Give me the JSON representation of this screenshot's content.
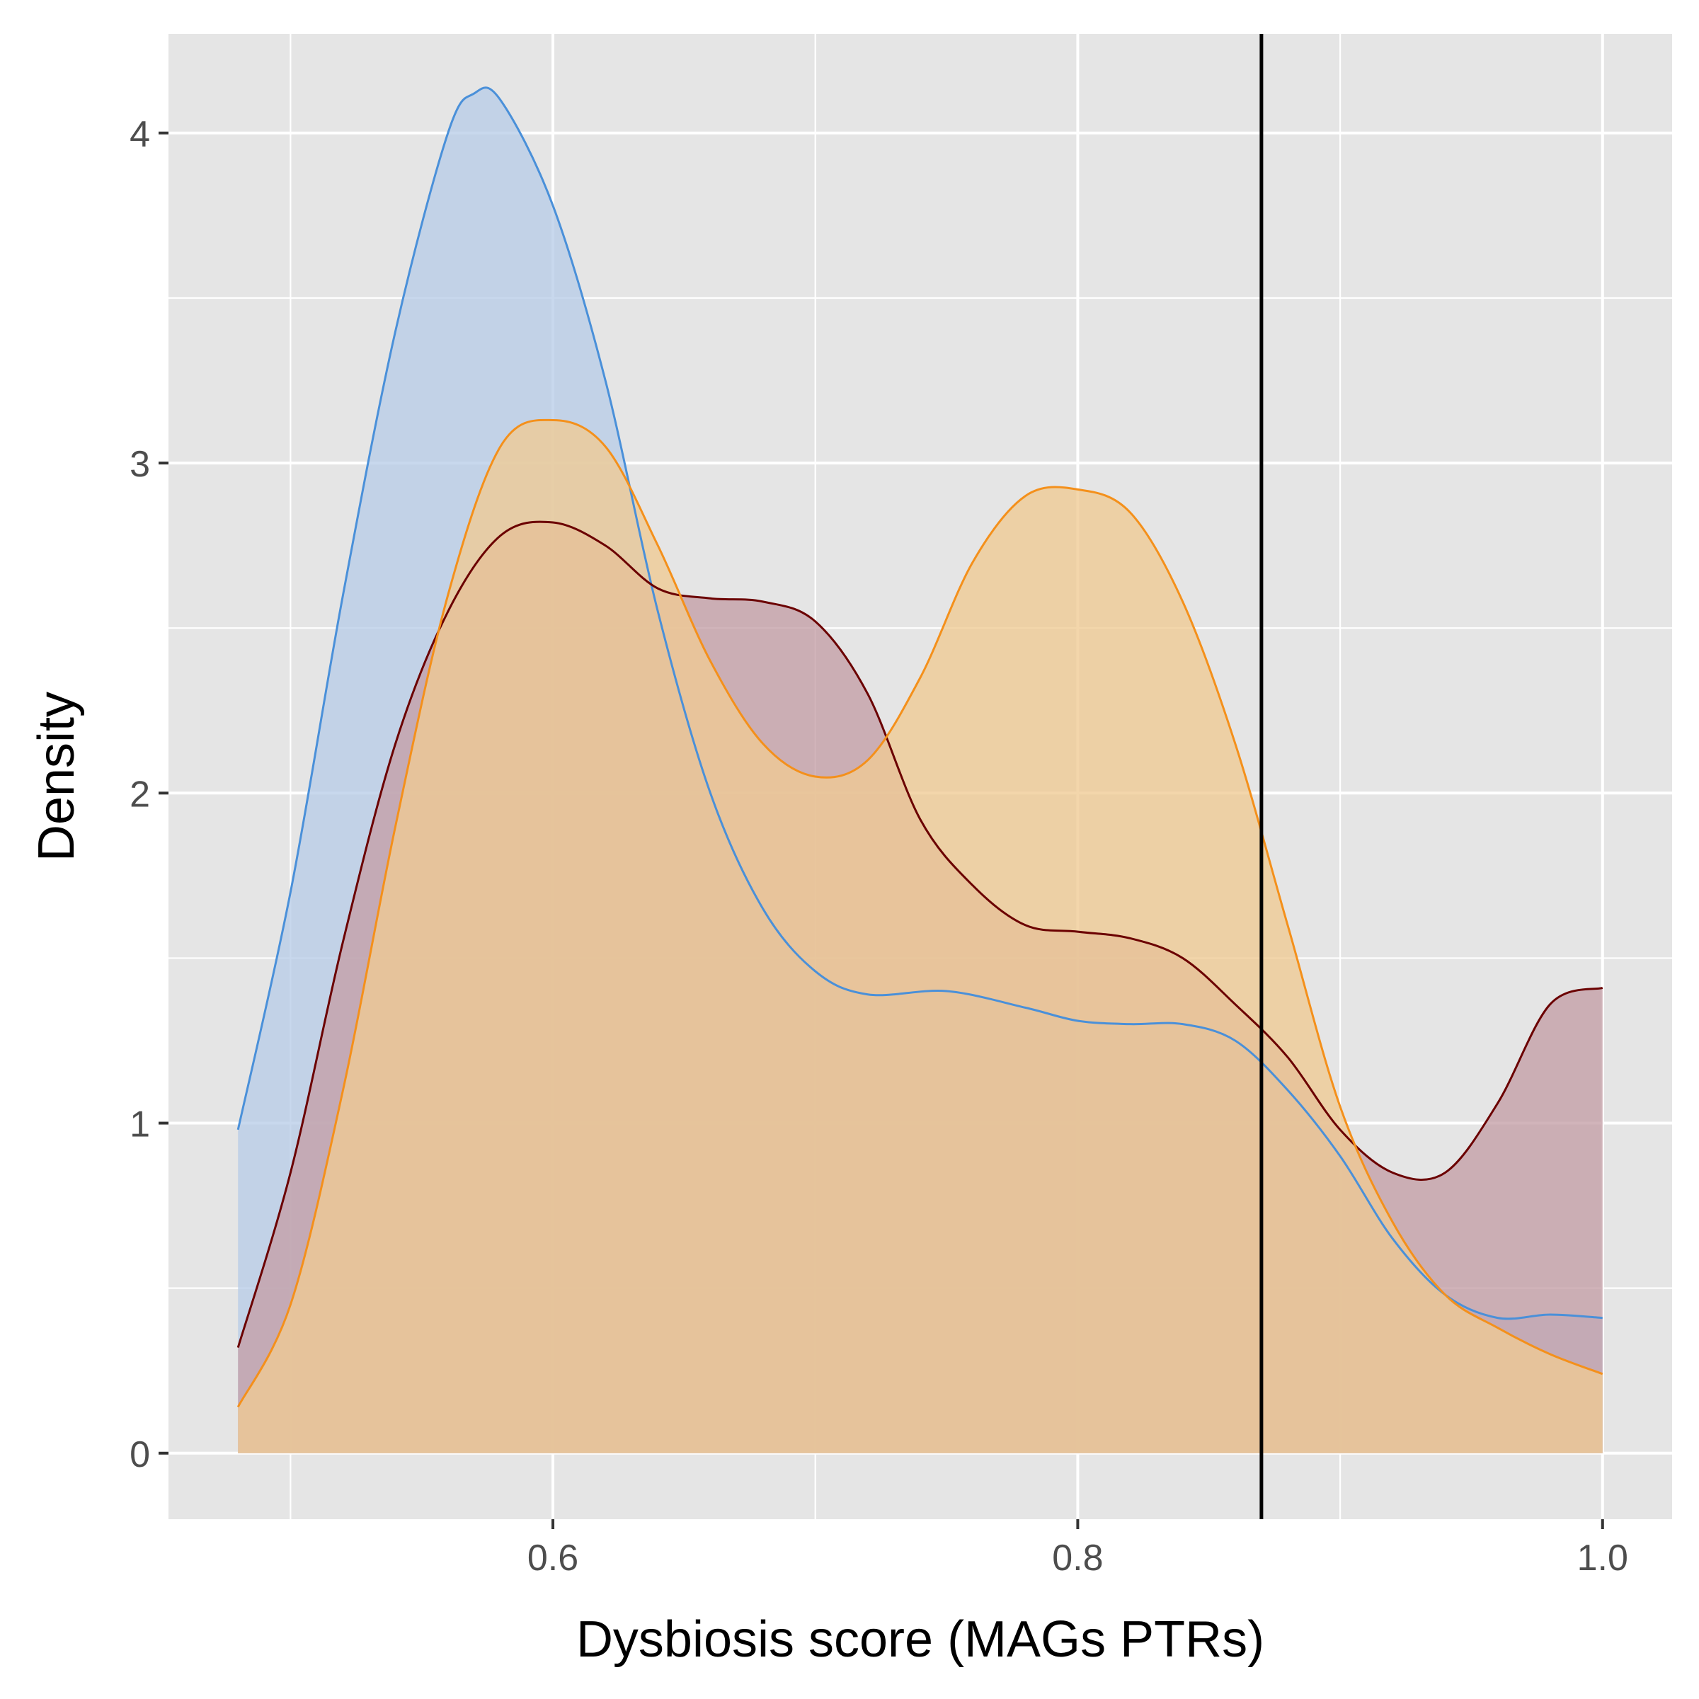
{
  "chart_data": {
    "type": "area",
    "title": "",
    "xlabel": "Dysbiosis score (MAGs PTRs)",
    "ylabel": "Density",
    "xlim": [
      0.4535,
      1.0265
    ],
    "ylim": [
      -0.2,
      4.3
    ],
    "x_ticks": [
      0.6,
      0.8,
      1.0
    ],
    "x_tick_labels": [
      "0.6",
      "0.8",
      "1.0"
    ],
    "y_ticks": [
      0,
      1,
      2,
      3,
      4
    ],
    "y_tick_labels": [
      "0",
      "1",
      "2",
      "3",
      "4"
    ],
    "grid": true,
    "legend": "none",
    "vline": {
      "x": 0.87,
      "color": "#000000"
    },
    "series": [
      {
        "color": "#4a90d9",
        "fill": "#b8cde8",
        "points": [
          [
            0.48,
            0.98
          ],
          [
            0.5,
            1.7
          ],
          [
            0.52,
            2.6
          ],
          [
            0.54,
            3.4
          ],
          [
            0.56,
            4.0
          ],
          [
            0.57,
            4.12
          ],
          [
            0.58,
            4.1
          ],
          [
            0.6,
            3.78
          ],
          [
            0.62,
            3.25
          ],
          [
            0.64,
            2.55
          ],
          [
            0.66,
            2.0
          ],
          [
            0.68,
            1.65
          ],
          [
            0.7,
            1.46
          ],
          [
            0.72,
            1.39
          ],
          [
            0.75,
            1.4
          ],
          [
            0.78,
            1.35
          ],
          [
            0.8,
            1.31
          ],
          [
            0.82,
            1.3
          ],
          [
            0.84,
            1.3
          ],
          [
            0.86,
            1.25
          ],
          [
            0.88,
            1.1
          ],
          [
            0.9,
            0.9
          ],
          [
            0.92,
            0.65
          ],
          [
            0.94,
            0.48
          ],
          [
            0.96,
            0.41
          ],
          [
            0.98,
            0.42
          ],
          [
            1.0,
            0.41
          ]
        ]
      },
      {
        "color": "#6b0000",
        "fill": "#c49fa6",
        "points": [
          [
            0.48,
            0.32
          ],
          [
            0.5,
            0.85
          ],
          [
            0.52,
            1.55
          ],
          [
            0.54,
            2.15
          ],
          [
            0.56,
            2.55
          ],
          [
            0.58,
            2.78
          ],
          [
            0.6,
            2.82
          ],
          [
            0.62,
            2.75
          ],
          [
            0.64,
            2.62
          ],
          [
            0.66,
            2.59
          ],
          [
            0.68,
            2.58
          ],
          [
            0.7,
            2.52
          ],
          [
            0.72,
            2.3
          ],
          [
            0.74,
            1.92
          ],
          [
            0.76,
            1.72
          ],
          [
            0.78,
            1.6
          ],
          [
            0.8,
            1.58
          ],
          [
            0.82,
            1.56
          ],
          [
            0.84,
            1.5
          ],
          [
            0.86,
            1.36
          ],
          [
            0.88,
            1.2
          ],
          [
            0.9,
            0.98
          ],
          [
            0.92,
            0.85
          ],
          [
            0.94,
            0.85
          ],
          [
            0.96,
            1.06
          ],
          [
            0.98,
            1.36
          ],
          [
            1.0,
            1.41
          ]
        ]
      },
      {
        "color": "#f4901b",
        "fill": "#f0cb94",
        "points": [
          [
            0.48,
            0.14
          ],
          [
            0.5,
            0.45
          ],
          [
            0.52,
            1.1
          ],
          [
            0.54,
            1.9
          ],
          [
            0.56,
            2.6
          ],
          [
            0.58,
            3.05
          ],
          [
            0.6,
            3.13
          ],
          [
            0.62,
            3.05
          ],
          [
            0.64,
            2.75
          ],
          [
            0.66,
            2.4
          ],
          [
            0.68,
            2.15
          ],
          [
            0.7,
            2.05
          ],
          [
            0.72,
            2.1
          ],
          [
            0.74,
            2.35
          ],
          [
            0.76,
            2.7
          ],
          [
            0.78,
            2.9
          ],
          [
            0.8,
            2.92
          ],
          [
            0.82,
            2.85
          ],
          [
            0.84,
            2.58
          ],
          [
            0.86,
            2.15
          ],
          [
            0.88,
            1.6
          ],
          [
            0.9,
            1.05
          ],
          [
            0.92,
            0.7
          ],
          [
            0.94,
            0.48
          ],
          [
            0.96,
            0.38
          ],
          [
            0.98,
            0.3
          ],
          [
            1.0,
            0.24
          ]
        ]
      }
    ]
  }
}
